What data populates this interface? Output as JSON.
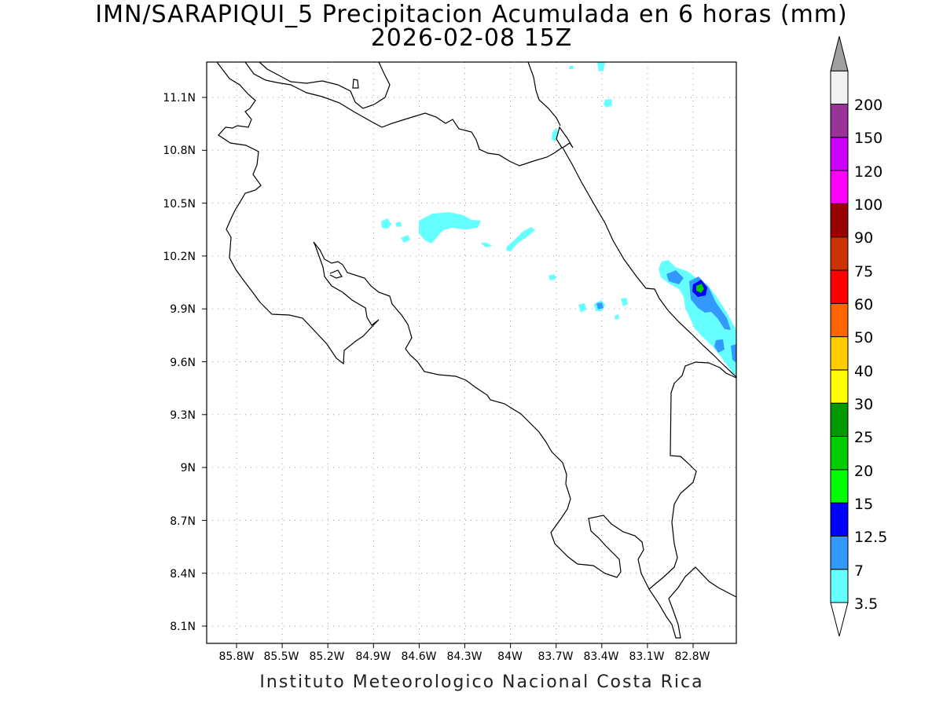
{
  "map": {
    "title_line1": "IMN/SARAPIQUI_5 Precipitacion Acumulada en 6 horas (mm)",
    "title_line2": "2026-02-08 15Z",
    "credit": "Instituto Meteorologico Nacional Costa Rica",
    "lat_ticks": [
      "11.1N",
      "10.8N",
      "10.5N",
      "10.2N",
      "9.9N",
      "9.6N",
      "9.3N",
      "9N",
      "8.7N",
      "8.4N",
      "8.1N"
    ],
    "lon_ticks": [
      "85.8W",
      "85.5W",
      "85.2W",
      "84.9W",
      "84.6W",
      "84.3W",
      "84W",
      "83.7W",
      "83.4W",
      "83.1W",
      "82.8W"
    ],
    "grid": true,
    "coastline_color": "#000000"
  },
  "colorbar": {
    "labels": [
      "3.5",
      "7",
      "12.5",
      "15",
      "20",
      "25",
      "30",
      "40",
      "50",
      "60",
      "75",
      "90",
      "100",
      "120",
      "150",
      "200"
    ],
    "colors": [
      "#66ffff",
      "#3399ff",
      "#0000ff",
      "#00ff00",
      "#00cc00",
      "#009900",
      "#ffff00",
      "#ffcc00",
      "#ff6600",
      "#ff0000",
      "#cc3300",
      "#990000",
      "#ff00ff",
      "#cc00ff",
      "#993399",
      "#f2f2f2"
    ],
    "top_triangle_color": "#a0a0a0",
    "bottom_triangle_color": "#ffffff"
  }
}
